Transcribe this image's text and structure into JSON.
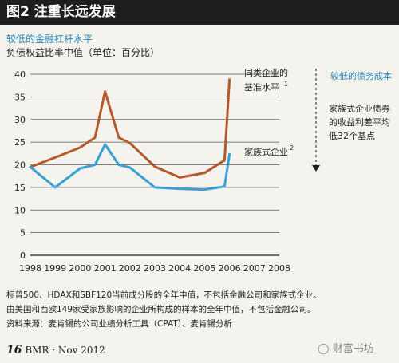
{
  "header": {
    "title": "图2 注重长远发展"
  },
  "chart_data": {
    "type": "line",
    "title": "较低的金融杠杆水平",
    "subtitle": "负债权益比率中值（单位：百分比）",
    "x": [
      1998,
      1999,
      2000,
      2001,
      2002,
      2003,
      2004,
      2005,
      2006,
      2007,
      2008
    ],
    "ylim": [
      0,
      40
    ],
    "yticks": [
      0,
      5,
      10,
      15,
      20,
      25,
      30,
      35,
      40
    ],
    "grid": true,
    "series": [
      {
        "name": "同类企业的基准水平",
        "label_line1": "同类企业的",
        "label_line2": "基准水平",
        "sup": "1",
        "color": "#b5592b",
        "x": [
          1998,
          1999,
          2000,
          2000.6,
          2001,
          2001.55,
          2002,
          2003,
          2004,
          2005,
          2005.8,
          2006
        ],
        "values": [
          19.5,
          21.6,
          23.8,
          26,
          36.2,
          26,
          24.8,
          19.6,
          17.2,
          18.2,
          21,
          38.8
        ]
      },
      {
        "name": "家族式企业",
        "sup": "2",
        "color": "#3aa0d3",
        "x": [
          1998,
          1999,
          2000,
          2000.6,
          2001,
          2001.55,
          2002,
          2003,
          2004,
          2005,
          2005.8,
          2006
        ],
        "values": [
          19.5,
          15,
          19.2,
          20,
          24.5,
          20,
          19.4,
          15,
          14.7,
          14.5,
          15.2,
          22.3
        ]
      }
    ]
  },
  "annotation": {
    "arrow_title": "较低的债务成本",
    "note": "家族式企业债券的收益利差平均低32个基点",
    "arrow_color": "#1e1e1e"
  },
  "footnotes": [
    "标普500、HDAX和SBF120当前成分股的全年中值，不包括金融公司和家族式企业。",
    "由美国和西欧149家受家族影响的企业所构成的样本的全年中值，不包括金融公司。",
    "资料来源：麦肯锡的公司业绩分析工具（CPAT）、麦肯锡分析"
  ],
  "footer": {
    "page_number": "16",
    "publication": "BMR · Nov 2012",
    "watermark": "财富书坊"
  }
}
